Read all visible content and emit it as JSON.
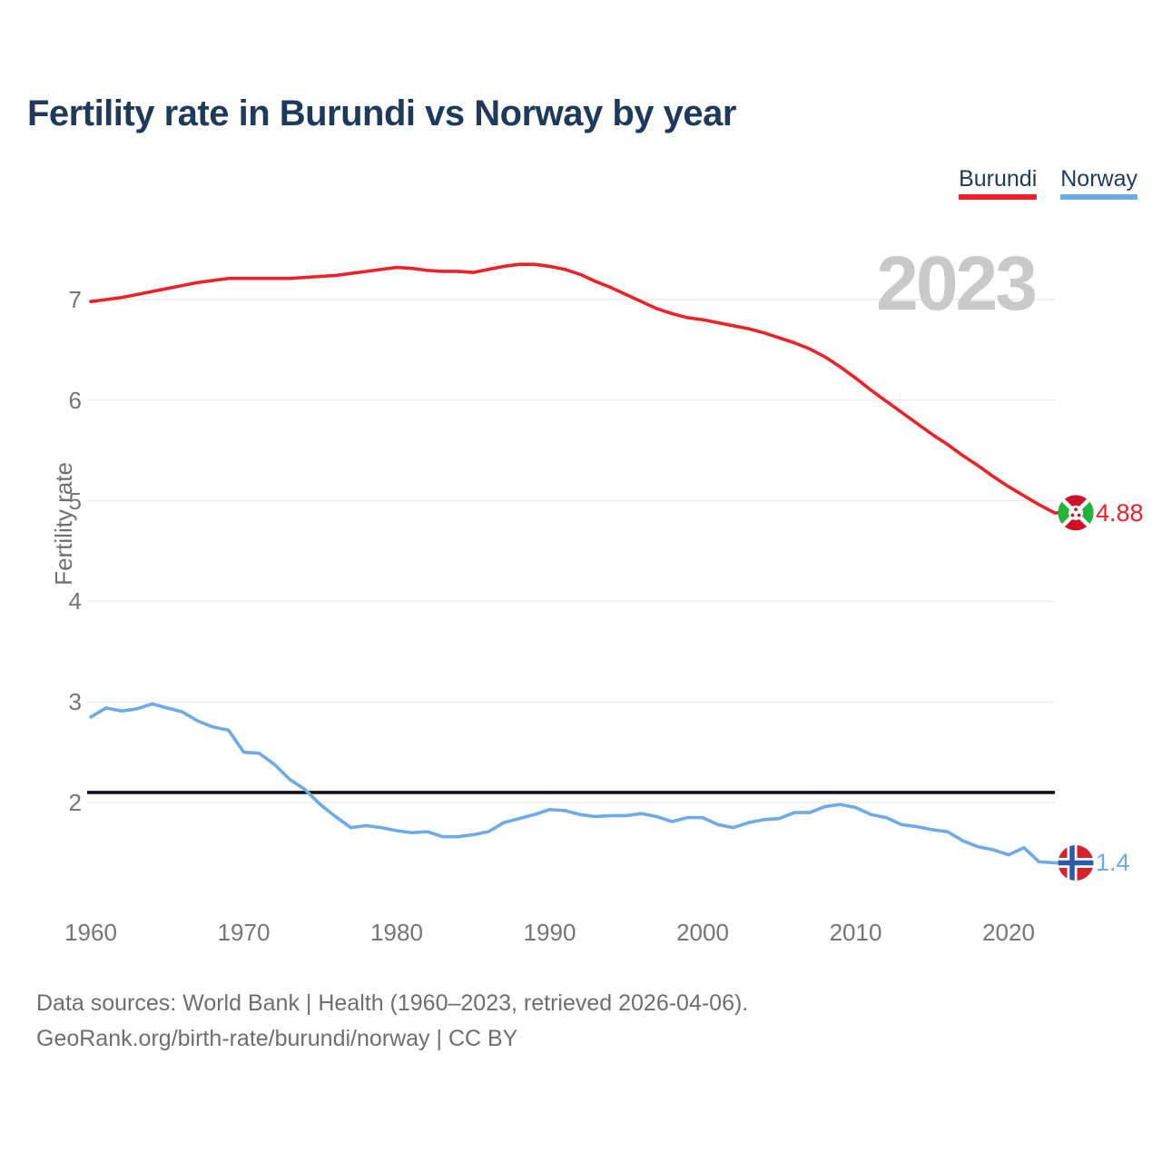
{
  "header": {
    "title": "Fertility rate in Burundi vs Norway by year"
  },
  "watermark": "2023",
  "chart_data": {
    "type": "line",
    "title": "Fertility rate in Burundi vs Norway by year",
    "xlabel": "",
    "ylabel": "Fertility rate",
    "legend_position": "top-right",
    "grid": "horizontal",
    "x_ticks": [
      1960,
      1970,
      1980,
      1990,
      2000,
      2010,
      2020
    ],
    "y_ticks": [
      7,
      6,
      5,
      4,
      3,
      2
    ],
    "ylim": [
      1.2,
      7.6
    ],
    "x": [
      1960,
      1961,
      1962,
      1963,
      1964,
      1965,
      1966,
      1967,
      1968,
      1969,
      1970,
      1971,
      1972,
      1973,
      1974,
      1975,
      1976,
      1977,
      1978,
      1979,
      1980,
      1981,
      1982,
      1983,
      1984,
      1985,
      1986,
      1987,
      1988,
      1989,
      1990,
      1991,
      1992,
      1993,
      1994,
      1995,
      1996,
      1997,
      1998,
      1999,
      2000,
      2001,
      2002,
      2003,
      2004,
      2005,
      2006,
      2007,
      2008,
      2009,
      2010,
      2011,
      2012,
      2013,
      2014,
      2015,
      2016,
      2017,
      2018,
      2019,
      2020,
      2021,
      2022,
      2023
    ],
    "series": [
      {
        "name": "Burundi",
        "color": "#ee2128",
        "end_label": "4.88",
        "values": [
          6.98,
          7.0,
          7.02,
          7.05,
          7.08,
          7.11,
          7.14,
          7.17,
          7.19,
          7.21,
          7.21,
          7.21,
          7.21,
          7.21,
          7.22,
          7.23,
          7.24,
          7.26,
          7.28,
          7.3,
          7.32,
          7.31,
          7.29,
          7.28,
          7.28,
          7.27,
          7.3,
          7.33,
          7.35,
          7.35,
          7.33,
          7.3,
          7.25,
          7.18,
          7.12,
          7.05,
          6.98,
          6.91,
          6.86,
          6.82,
          6.8,
          6.77,
          6.74,
          6.71,
          6.67,
          6.62,
          6.57,
          6.51,
          6.43,
          6.33,
          6.22,
          6.1,
          5.99,
          5.88,
          5.77,
          5.66,
          5.56,
          5.45,
          5.35,
          5.24,
          5.14,
          5.05,
          4.96,
          4.88
        ]
      },
      {
        "name": "Norway",
        "color": "#6dabe8",
        "end_label": "1.4",
        "values": [
          2.85,
          2.94,
          2.91,
          2.93,
          2.98,
          2.94,
          2.9,
          2.81,
          2.75,
          2.72,
          2.5,
          2.49,
          2.38,
          2.23,
          2.13,
          1.98,
          1.86,
          1.75,
          1.77,
          1.75,
          1.72,
          1.7,
          1.71,
          1.66,
          1.66,
          1.68,
          1.71,
          1.8,
          1.84,
          1.88,
          1.93,
          1.92,
          1.88,
          1.86,
          1.87,
          1.87,
          1.89,
          1.86,
          1.81,
          1.85,
          1.85,
          1.78,
          1.75,
          1.8,
          1.83,
          1.84,
          1.9,
          1.9,
          1.96,
          1.98,
          1.95,
          1.88,
          1.85,
          1.78,
          1.76,
          1.73,
          1.71,
          1.62,
          1.56,
          1.53,
          1.48,
          1.55,
          1.41,
          1.4
        ]
      }
    ],
    "reference_line": {
      "value": 2.1,
      "color": "#111118"
    }
  },
  "footer": {
    "line1": "Data sources: World Bank | Health (1960–2023, retrieved 2026-04-06).",
    "line2": "GeoRank.org/birth-rate/burundi/norway | CC BY"
  }
}
